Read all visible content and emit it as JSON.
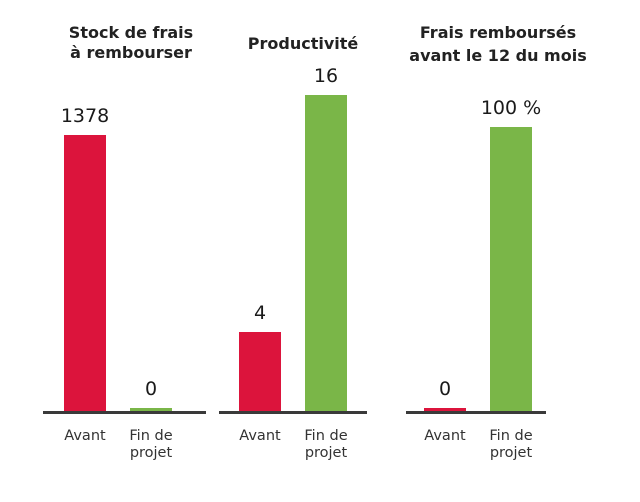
{
  "chart_data": [
    {
      "type": "bar",
      "title_lines": [
        "Stock de frais",
        "à rembourser"
      ],
      "categories": [
        [
          "Avant"
        ],
        [
          "Fin de",
          "projet"
        ]
      ],
      "values": [
        1378,
        0
      ],
      "value_labels": [
        "1378",
        "0"
      ],
      "colors": [
        "#dc143c",
        "#7ab648"
      ],
      "ylim": [
        0,
        1378
      ]
    },
    {
      "type": "bar",
      "title_lines": [
        "Productivité"
      ],
      "categories": [
        [
          "Avant"
        ],
        [
          "Fin de",
          "projet"
        ]
      ],
      "values": [
        4,
        16
      ],
      "value_labels": [
        "4",
        "16"
      ],
      "colors": [
        "#dc143c",
        "#7ab648"
      ],
      "ylim": [
        0,
        16
      ]
    },
    {
      "type": "bar",
      "title_lines": [
        "Frais remboursés",
        "avant le 12 du mois"
      ],
      "categories": [
        [
          "Avant"
        ],
        [
          "Fin de",
          "projet"
        ]
      ],
      "values": [
        0,
        100
      ],
      "value_labels": [
        "0",
        "100 %"
      ],
      "colors": [
        "#dc143c",
        "#7ab648"
      ],
      "ylim": [
        0,
        100
      ]
    }
  ]
}
